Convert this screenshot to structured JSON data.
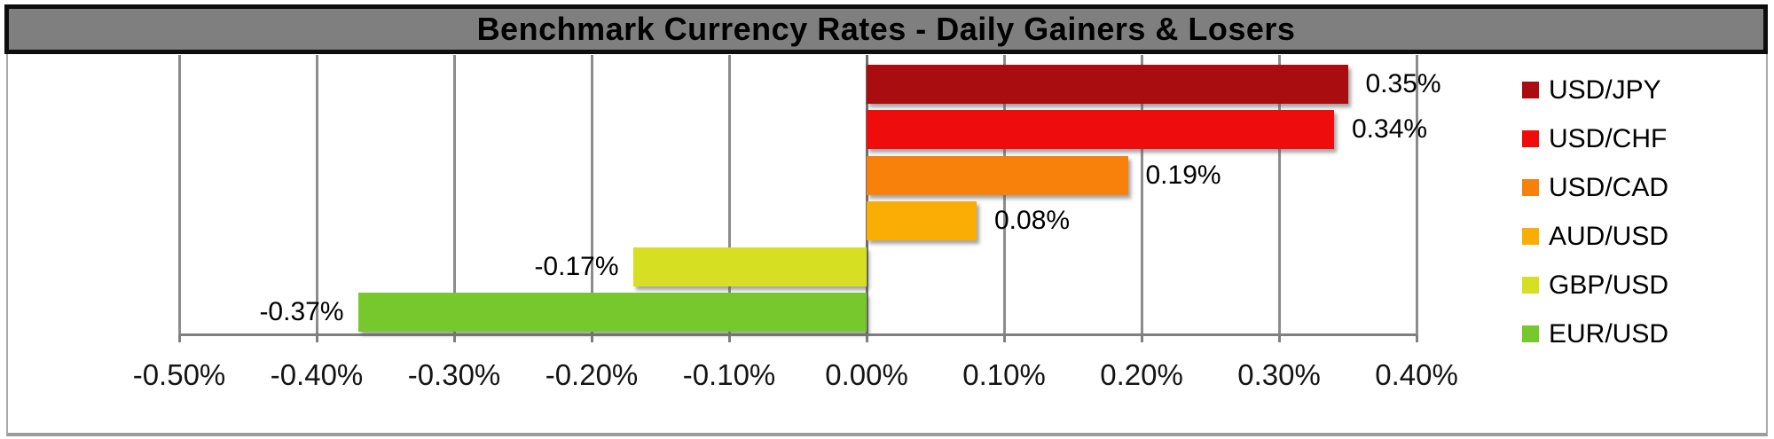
{
  "title": "Benchmark Currency Rates - Daily Gainers & Losers",
  "chart_data": {
    "type": "bar",
    "orientation": "horizontal",
    "title": "Benchmark Currency Rates - Daily Gainers & Losers",
    "categories": [
      "USD/JPY",
      "USD/CHF",
      "USD/CAD",
      "AUD/USD",
      "GBP/USD",
      "EUR/USD"
    ],
    "values": [
      0.35,
      0.34,
      0.19,
      0.08,
      -0.17,
      -0.37
    ],
    "value_labels": [
      "0.35%",
      "0.34%",
      "0.19%",
      "0.08%",
      "-0.17%",
      "-0.37%"
    ],
    "bar_colors": [
      "#A90D10",
      "#EE0C0C",
      "#F7810A",
      "#FAAD05",
      "#D7DF23",
      "#76C82D"
    ],
    "xlabel": "",
    "ylabel": "",
    "xlim": [
      -0.5,
      0.4
    ],
    "x_tick_values": [
      -0.5,
      -0.4,
      -0.3,
      -0.2,
      -0.1,
      0.0,
      0.1,
      0.2,
      0.3,
      0.4
    ],
    "x_tick_labels": [
      "-0.50%",
      "-0.40%",
      "-0.30%",
      "-0.20%",
      "-0.10%",
      "0.00%",
      "0.10%",
      "0.20%",
      "0.30%",
      "0.40%"
    ],
    "grid": true,
    "legend_position": "right",
    "legend": [
      {
        "label": "USD/JPY",
        "color": "#A90D10"
      },
      {
        "label": "USD/CHF",
        "color": "#EE0C0C"
      },
      {
        "label": "USD/CAD",
        "color": "#F7810A"
      },
      {
        "label": "AUD/USD",
        "color": "#FAAD05"
      },
      {
        "label": "GBP/USD",
        "color": "#D7DF23"
      },
      {
        "label": "EUR/USD",
        "color": "#76C82D"
      }
    ]
  },
  "style": {
    "title_bg": "#7F7F7F",
    "title_border": "#0D0D0D",
    "title_text_color": "#000000",
    "gridline_color": "#8C8C8C",
    "zero_line_color": "#6E6E6E",
    "axis_line_color": "#7F7F7F",
    "frame_color": "#AAAAAA",
    "plot_bg": "#FFFFFF"
  }
}
